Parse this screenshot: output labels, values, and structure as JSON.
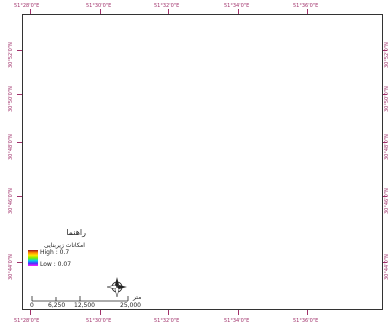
{
  "map": {
    "top_ticks": [
      "51°28'0\"E",
      "51°30'0\"E",
      "51°32'0\"E",
      "51°34'0\"E",
      "51°36'0\"E"
    ],
    "left_ticks": [
      "30°52'0\"N",
      "30°50'0\"N",
      "30°48'0\"N",
      "30°46'0\"N",
      "30°44'0\"N"
    ],
    "right_ticks": [
      "30°52'0\"N",
      "30°50'0\"N",
      "30°48'0\"N",
      "30°46'0\"N",
      "30°44'0\"N"
    ],
    "bottom_ticks": [
      "51°28'0\"E",
      "51°30'0\"E",
      "51°32'0\"E",
      "51°34'0\"E",
      "51°36'0\"E"
    ]
  },
  "legend": {
    "title": "راهنما",
    "subtitle": "امکانات زیربنایی",
    "high_label": "High : 0.7",
    "low_label": "Low : 0.07",
    "ramp_colors": [
      "#a0101a",
      "#ff8a00",
      "#ffe600",
      "#7cf000",
      "#00d0f0",
      "#4a30ff",
      "#ff20ff"
    ]
  },
  "scale_bar": {
    "labels": [
      "0",
      "6,250",
      "12,500",
      "25,000"
    ],
    "unit": "متر"
  },
  "north_arrow": {
    "icon": "compass-rose-icon",
    "label": "N"
  }
}
